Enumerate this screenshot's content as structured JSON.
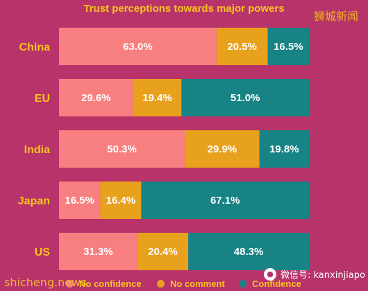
{
  "watermarks": {
    "top_right": "狮城新闻",
    "bottom_left": "shicheng.news",
    "bottom_right": "微信号: kanxinjiapo"
  },
  "colors": {
    "background": "#b8336a",
    "no_confidence": "#f87f80",
    "no_comment": "#e8a11c",
    "confidence": "#178385",
    "label": "#f7c31e"
  },
  "chart_data": {
    "type": "bar",
    "orientation": "horizontal",
    "stacked": true,
    "title": "Trust perceptions towards major powers",
    "categories": [
      "China",
      "EU",
      "India",
      "Japan",
      "US"
    ],
    "series": [
      {
        "name": "No confidence",
        "values": [
          63.0,
          29.6,
          50.3,
          16.5,
          31.3
        ],
        "color": "#f87f80"
      },
      {
        "name": "No comment",
        "values": [
          20.5,
          19.4,
          29.9,
          16.4,
          20.4
        ],
        "color": "#e8a11c"
      },
      {
        "name": "Confidence",
        "values": [
          16.5,
          51.0,
          19.8,
          67.1,
          48.3
        ],
        "color": "#178385"
      }
    ],
    "value_labels": [
      [
        "63.0%",
        "20.5%",
        "16.5%"
      ],
      [
        "29.6%",
        "19.4%",
        "51.0%"
      ],
      [
        "50.3%",
        "29.9%",
        "19.8%"
      ],
      [
        "16.5%",
        "16.4%",
        "67.1%"
      ],
      [
        "31.3%",
        "20.4%",
        "48.3%"
      ]
    ],
    "xlim": [
      0,
      100
    ],
    "grid": false,
    "legend_position": "bottom"
  }
}
